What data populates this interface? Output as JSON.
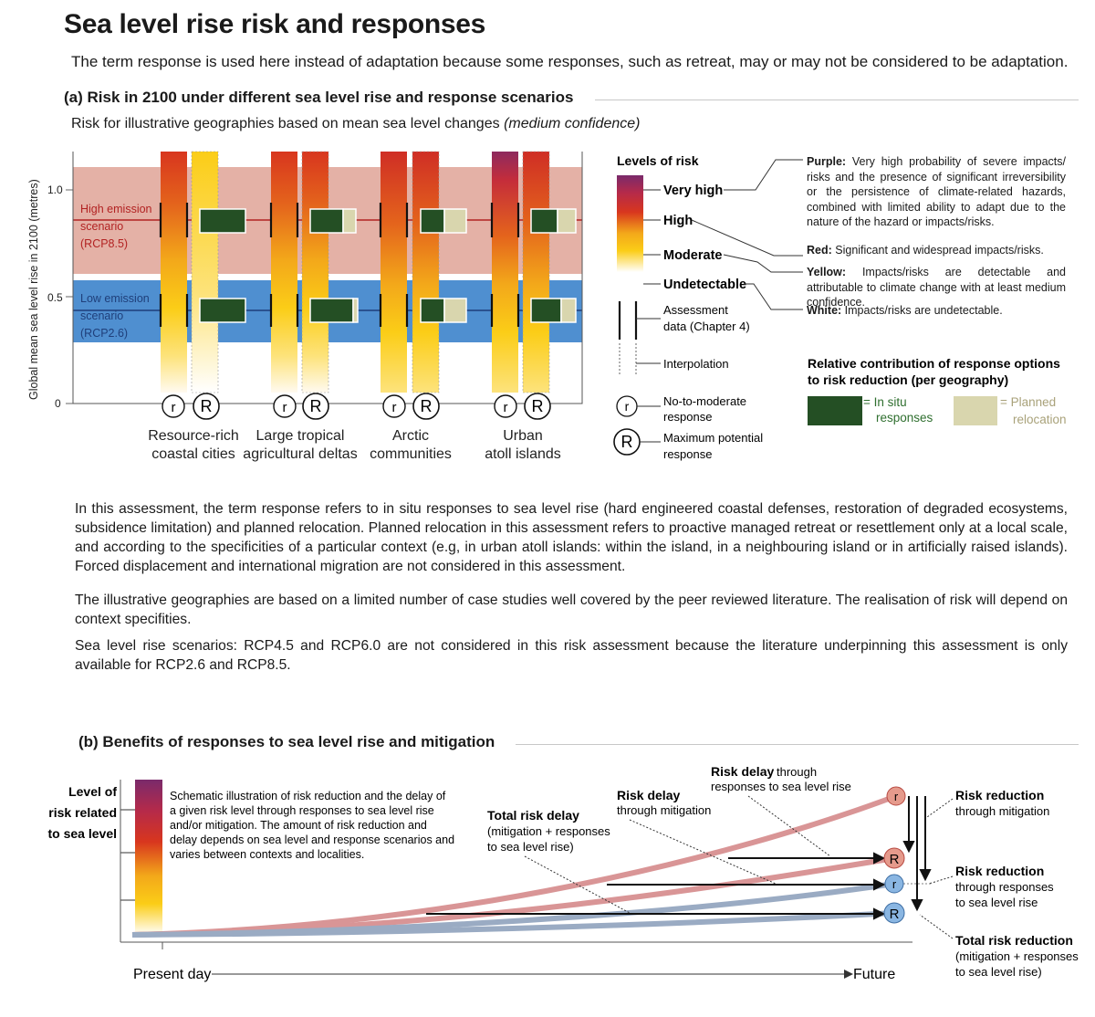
{
  "title": "Sea level rise risk and responses",
  "subtitle": "The term response is used here instead of adaptation because some responses, such as retreat, may or may not be considered to be adaptation.",
  "panel_a": {
    "heading": "(a) Risk in 2100 under different sea level rise and response scenarios",
    "subheading": "Risk for illustrative geographies based on mean sea level changes",
    "subheading_confidence": "(medium confidence)",
    "y_axis_label": "Global mean sea level rise in 2100 (metres)",
    "y_ticks": [
      "1.0",
      "0.5",
      "0"
    ],
    "scenarios": {
      "high": [
        "High emission",
        "scenario",
        "(RCP8.5)"
      ],
      "low": [
        "Low emission",
        "scenario",
        "(RCP2.6)"
      ]
    },
    "geographies": [
      {
        "line1": "Resource-rich",
        "line2": "coastal cities"
      },
      {
        "line1": "Large tropical",
        "line2": "agricultural deltas"
      },
      {
        "line1": "Arctic",
        "line2": "communities"
      },
      {
        "line1": "Urban",
        "line2": "atoll islands"
      }
    ],
    "response_symbols": {
      "small": "r",
      "large": "R"
    },
    "levels_of_risk": {
      "heading": "Levels of risk",
      "very_high": "Very high",
      "high": "High",
      "moderate": "Moderate",
      "undetectable": "Undetectable",
      "assessment_data": [
        "Assessment",
        "data (Chapter 4)"
      ],
      "interpolation": "Interpolation",
      "no_to_moderate": [
        "No-to-moderate",
        "response"
      ],
      "maximum_potential": [
        "Maximum potential",
        "response"
      ]
    },
    "definitions": {
      "purple_label": "Purple:",
      "purple_text": "Very high probability of severe impacts/ risks and the presence of significant irreversibility or the persistence of climate-related hazards, combined with limited ability to adapt due to the nature of the hazard or impacts/risks.",
      "red_label": "Red:",
      "red_text": "Significant and widespread impacts/risks.",
      "yellow_label": "Yellow:",
      "yellow_text": "Impacts/risks are detectable and attributable to climate change with at least medium confidence.",
      "white_label": "White:",
      "white_text": "Impacts/risks are undetectable."
    },
    "contribution": {
      "heading_line1": "Relative contribution of response options",
      "heading_line2": "to risk reduction (per geography)",
      "in_situ": [
        "= In situ",
        "responses"
      ],
      "planned": [
        "= Planned",
        "relocation"
      ]
    }
  },
  "paragraphs": [
    "In this assessment, the term response refers to in situ responses to sea level rise (hard engineered coastal defenses, restoration of degraded ecosystems, subsidence limitation) and planned relocation. Planned relocation in this assessment refers to proactive managed retreat or resettlement only at a local scale, and according to the specificities of a particular context (e.g, in urban atoll islands: within the island, in a neighbouring island or in artificially raised islands). Forced displacement and international migration are not considered in this assessment.",
    "The illustrative geographies are based on a limited number of case studies well covered by the peer reviewed literature. The realisation of risk will depend on context specifities.",
    "Sea level rise scenarios: RCP4.5 and RCP6.0 are not considered in this risk assessment because the literature underpinning this assessment is only available for RCP2.6 and RCP8.5."
  ],
  "panel_b": {
    "heading": "(b) Benefits of responses to sea level rise and mitigation",
    "y_label": [
      "Level of",
      "risk related",
      "to sea level"
    ],
    "note": [
      "Schematic illustration of risk reduction and the delay of",
      "a given risk level through responses to sea level rise",
      "and/or mitigation. The amount of risk reduction and",
      "delay depends on sea level and response scenarios and",
      "varies between contexts and localities."
    ],
    "x_start": "Present day",
    "x_end": "Future",
    "risk_delay_responses": {
      "bold": "Risk delay",
      "rest": [
        " through",
        "responses to sea level rise"
      ]
    },
    "risk_delay_mitigation": {
      "bold": "Risk delay",
      "rest": [
        "through mitigation"
      ]
    },
    "total_risk_delay": {
      "bold": "Total risk delay",
      "rest": [
        "(mitigation + responses",
        "to sea level rise)"
      ]
    },
    "risk_reduction_mitigation": {
      "bold": "Risk reduction",
      "rest": [
        "through mitigation"
      ]
    },
    "risk_reduction_responses": {
      "bold": "Risk reduction",
      "rest": [
        "through responses",
        "to sea level rise"
      ]
    },
    "total_risk_reduction": {
      "bold": "Total risk reduction",
      "rest": [
        "(mitigation + responses",
        "to sea level rise)"
      ]
    }
  }
}
